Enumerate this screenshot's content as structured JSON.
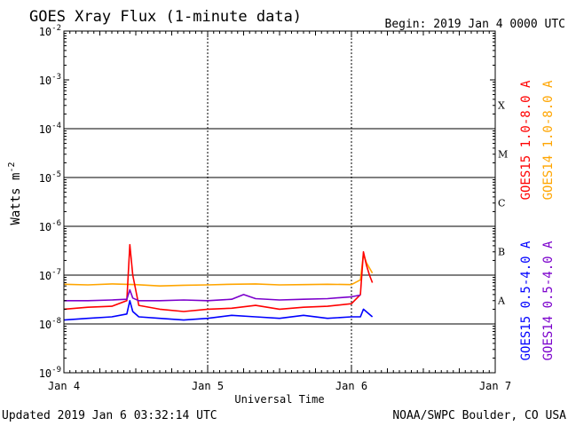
{
  "chart_data": {
    "type": "line",
    "title": "GOES Xray Flux (1-minute data)",
    "begin_label": "Begin:  2019 Jan 4 0000 UTC",
    "xlabel": "Universal Time",
    "ylabel_main": "Watts m",
    "ylabel_exp": "-2",
    "y_scale": "log",
    "ylim": [
      1e-09,
      0.01
    ],
    "y_ticks": [
      {
        "value": 0.01,
        "exp": "-2"
      },
      {
        "value": 0.001,
        "exp": "-3"
      },
      {
        "value": 0.0001,
        "exp": "-4"
      },
      {
        "value": 1e-05,
        "exp": "-5"
      },
      {
        "value": 1e-06,
        "exp": "-6"
      },
      {
        "value": 1e-07,
        "exp": "-7"
      },
      {
        "value": 1e-08,
        "exp": "-8"
      },
      {
        "value": 1e-09,
        "exp": "-9"
      }
    ],
    "y_tick_base": "10",
    "xlim": [
      "2019-01-04 00:00",
      "2019-01-07 00:00"
    ],
    "x_ticks": [
      "Jan 4",
      "Jan 5",
      "Jan 6",
      "Jan 7"
    ],
    "flare_classes": [
      {
        "label": "X",
        "value": 0.0001
      },
      {
        "label": "M",
        "value": 1e-05
      },
      {
        "label": "C",
        "value": 1e-06
      },
      {
        "label": "B",
        "value": 1e-07
      },
      {
        "label": "A",
        "value": 1e-08
      }
    ],
    "legend_right_long": [
      {
        "label": "GOES15 1.0-8.0 A",
        "color": "#ff0000"
      },
      {
        "label": "GOES14 1.0-8.0 A",
        "color": "#ffa500"
      }
    ],
    "legend_right_short": [
      {
        "label": "GOES15 0.5-4.0 A",
        "color": "#0000ff"
      },
      {
        "label": "GOES14 0.5-4.0 A",
        "color": "#7b00cc"
      }
    ],
    "series": [
      {
        "name": "GOES14 1.0-8.0 A",
        "color": "#ffa500",
        "x": [
          "2019-01-04 00:00",
          "2019-01-04 04:00",
          "2019-01-04 08:00",
          "2019-01-04 12:00",
          "2019-01-04 16:00",
          "2019-01-04 20:00",
          "2019-01-05 00:00",
          "2019-01-05 04:00",
          "2019-01-05 08:00",
          "2019-01-05 12:00",
          "2019-01-05 16:00",
          "2019-01-05 20:00",
          "2019-01-06 00:00",
          "2019-01-06 01:30",
          "2019-01-06 02:00",
          "2019-01-06 02:30",
          "2019-01-06 03:00",
          "2019-01-06 03:30"
        ],
        "y": [
          6.5e-08,
          6.3e-08,
          6.6e-08,
          6.4e-08,
          6e-08,
          6.2e-08,
          6.3e-08,
          6.5e-08,
          6.6e-08,
          6.3e-08,
          6.4e-08,
          6.5e-08,
          6.4e-08,
          8e-08,
          2.7e-07,
          1.8e-07,
          1.4e-07,
          1.1e-07
        ]
      },
      {
        "name": "GOES15 1.0-8.0 A",
        "color": "#ff0000",
        "x": [
          "2019-01-04 00:00",
          "2019-01-04 04:00",
          "2019-01-04 08:00",
          "2019-01-04 10:30",
          "2019-01-04 11:00",
          "2019-01-04 11:30",
          "2019-01-04 12:30",
          "2019-01-04 16:00",
          "2019-01-04 20:00",
          "2019-01-05 00:00",
          "2019-01-05 04:00",
          "2019-01-05 08:00",
          "2019-01-05 12:00",
          "2019-01-05 16:00",
          "2019-01-05 20:00",
          "2019-01-06 00:00",
          "2019-01-06 01:30",
          "2019-01-06 02:00",
          "2019-01-06 02:30",
          "2019-01-06 03:00",
          "2019-01-06 03:30"
        ],
        "y": [
          2e-08,
          2.2e-08,
          2.3e-08,
          3e-08,
          4.2e-07,
          1e-07,
          2.4e-08,
          2e-08,
          1.8e-08,
          2e-08,
          2.1e-08,
          2.4e-08,
          2e-08,
          2.2e-08,
          2.3e-08,
          2.6e-08,
          4e-08,
          3e-07,
          1.6e-07,
          1e-07,
          7e-08
        ]
      },
      {
        "name": "GOES14 0.5-4.0 A",
        "color": "#7b00cc",
        "x": [
          "2019-01-04 00:00",
          "2019-01-04 04:00",
          "2019-01-04 08:00",
          "2019-01-04 10:30",
          "2019-01-04 11:00",
          "2019-01-04 11:30",
          "2019-01-04 12:30",
          "2019-01-04 16:00",
          "2019-01-04 20:00",
          "2019-01-05 00:00",
          "2019-01-05 04:00",
          "2019-01-05 06:00",
          "2019-01-05 08:00",
          "2019-01-05 12:00",
          "2019-01-05 16:00",
          "2019-01-05 20:00",
          "2019-01-06 00:00",
          "2019-01-06 01:30"
        ],
        "y": [
          3e-08,
          3e-08,
          3.1e-08,
          3.2e-08,
          5e-08,
          3.4e-08,
          3e-08,
          3e-08,
          3.1e-08,
          3e-08,
          3.2e-08,
          4e-08,
          3.3e-08,
          3.1e-08,
          3.2e-08,
          3.3e-08,
          3.6e-08,
          3.9e-08
        ]
      },
      {
        "name": "GOES15 0.5-4.0 A",
        "color": "#0000ff",
        "x": [
          "2019-01-04 00:00",
          "2019-01-04 04:00",
          "2019-01-04 08:00",
          "2019-01-04 10:30",
          "2019-01-04 11:00",
          "2019-01-04 11:30",
          "2019-01-04 12:30",
          "2019-01-04 16:00",
          "2019-01-04 20:00",
          "2019-01-05 00:00",
          "2019-01-05 04:00",
          "2019-01-05 08:00",
          "2019-01-05 12:00",
          "2019-01-05 16:00",
          "2019-01-05 20:00",
          "2019-01-06 00:00",
          "2019-01-06 01:30",
          "2019-01-06 02:00",
          "2019-01-06 03:30"
        ],
        "y": [
          1.2e-08,
          1.3e-08,
          1.4e-08,
          1.6e-08,
          3e-08,
          1.8e-08,
          1.4e-08,
          1.3e-08,
          1.2e-08,
          1.3e-08,
          1.5e-08,
          1.4e-08,
          1.3e-08,
          1.5e-08,
          1.3e-08,
          1.4e-08,
          1.4e-08,
          2e-08,
          1.4e-08
        ]
      }
    ]
  },
  "footer": {
    "updated": "Updated 2019 Jan  6 03:32:14 UTC",
    "credit": "NOAA/SWPC Boulder, CO USA"
  }
}
